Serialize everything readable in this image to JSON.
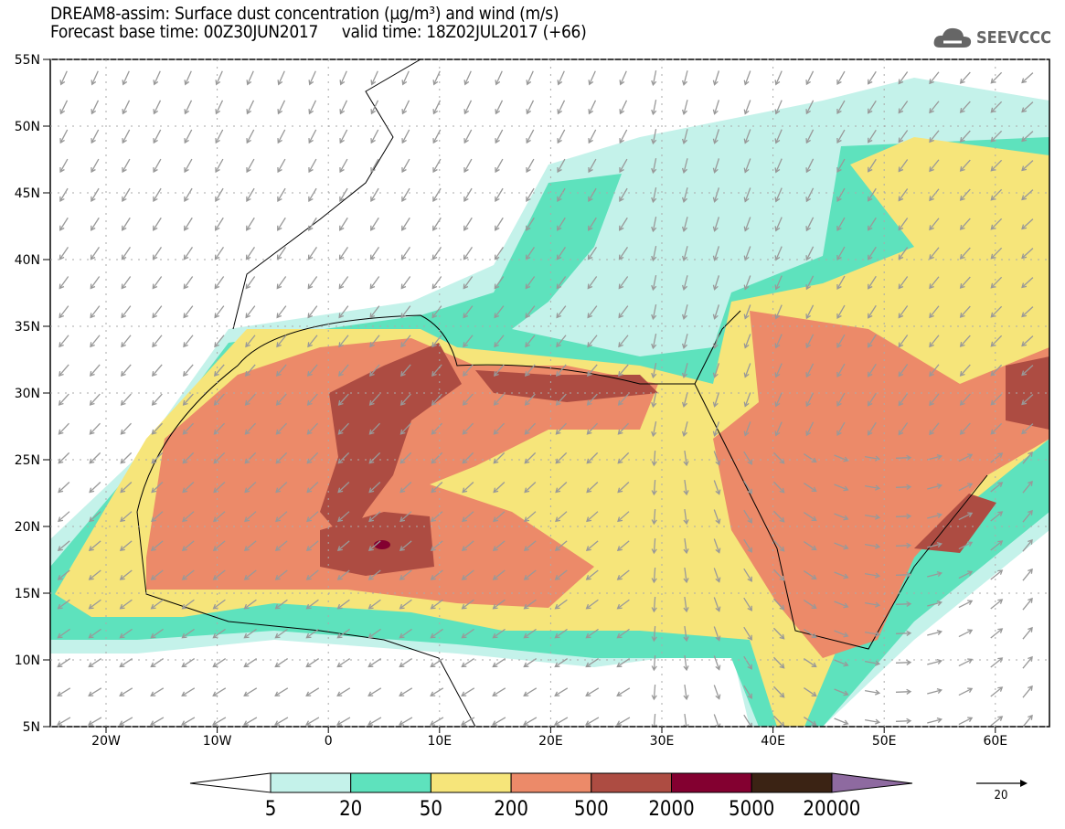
{
  "header": {
    "title": "DREAM8-assim: Surface dust concentration (µg/m³) and wind (m/s)",
    "subtitle": "Forecast base time: 00Z30JUN2017     valid time: 18Z02JUL2017 (+66)"
  },
  "logo": {
    "text": "SEEVCCC",
    "icon": "cloud-icon"
  },
  "axes": {
    "lat_labels": [
      "55N",
      "50N",
      "45N",
      "40N",
      "35N",
      "30N",
      "25N",
      "20N",
      "15N",
      "10N",
      "5N"
    ],
    "lon_labels": [
      "20W",
      "10W",
      "0",
      "10E",
      "20E",
      "30E",
      "40E",
      "50E",
      "60E"
    ]
  },
  "colorbar": {
    "labels": [
      "5",
      "20",
      "50",
      "200",
      "500",
      "2000",
      "5000",
      "20000"
    ],
    "colors": [
      "#ffffff",
      "#c4f2ea",
      "#5ee2bd",
      "#f6e57a",
      "#ec8a69",
      "#ad4c42",
      "#830030",
      "#3b2314",
      "#8e6aa0"
    ]
  },
  "wind_reference": {
    "value": "20"
  }
}
